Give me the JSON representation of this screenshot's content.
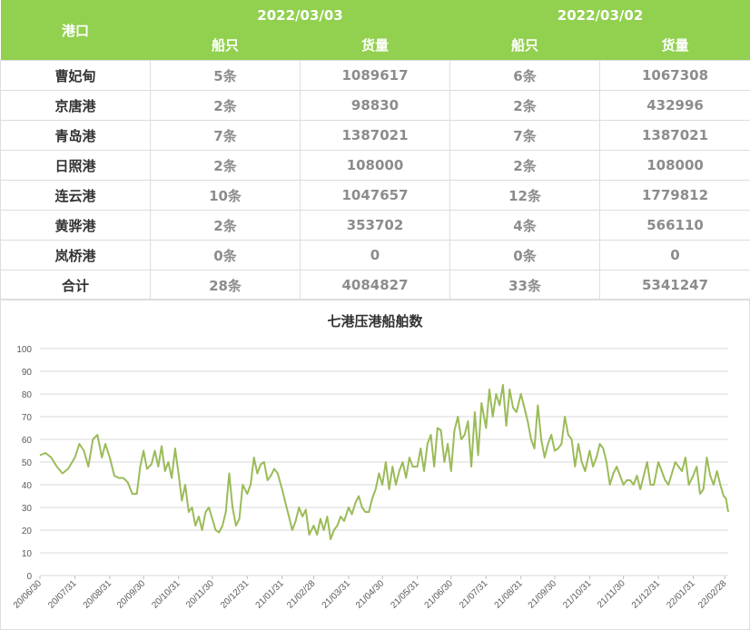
{
  "table": {
    "port_header": "港口",
    "dates": [
      "2022/03/03",
      "2022/03/02"
    ],
    "sub_headers": [
      "船只",
      "货量",
      "船只",
      "货量"
    ],
    "rows": [
      {
        "port": "曹妃甸",
        "ships1": "5条",
        "volume1": "1089617",
        "ships2": "6条",
        "volume2": "1067308"
      },
      {
        "port": "京唐港",
        "ships1": "2条",
        "volume1": "98830",
        "ships2": "2条",
        "volume2": "432996"
      },
      {
        "port": "青岛港",
        "ships1": "7条",
        "volume1": "1387021",
        "ships2": "7条",
        "volume2": "1387021"
      },
      {
        "port": "日照港",
        "ships1": "2条",
        "volume1": "108000",
        "ships2": "2条",
        "volume2": "108000"
      },
      {
        "port": "连云港",
        "ships1": "10条",
        "volume1": "1047657",
        "ships2": "12条",
        "volume2": "1779812"
      },
      {
        "port": "黄骅港",
        "ships1": "2条",
        "volume1": "353702",
        "ships2": "4条",
        "volume2": "566110"
      },
      {
        "port": "岚桥港",
        "ships1": "0条",
        "volume1": "0",
        "ships2": "0条",
        "volume2": "0"
      },
      {
        "port": "合计",
        "ships1": "28条",
        "volume1": "4084827",
        "ships2": "33条",
        "volume2": "5341247"
      }
    ]
  },
  "colors": {
    "header_bg": "#92d050",
    "line": "#9bbb59",
    "grid": "#d9d9d9"
  },
  "chart_data": {
    "type": "line",
    "title": "七港压港船舶数",
    "xlabel": "",
    "ylabel": "",
    "ylim": [
      0,
      100
    ],
    "y_ticks": [
      0,
      10,
      20,
      30,
      40,
      50,
      60,
      70,
      80,
      90,
      100
    ],
    "x_range": [
      "2020-06-30",
      "2022-03-03"
    ],
    "x_tick_labels": [
      "20/06/30",
      "20/07/31",
      "20/08/31",
      "20/09/30",
      "20/10/31",
      "20/11/30",
      "20/12/31",
      "21/01/31",
      "21/02/28",
      "21/03/31",
      "21/04/30",
      "21/05/31",
      "21/06/30",
      "21/07/31",
      "21/08/31",
      "21/09/30",
      "21/10/31",
      "21/11/30",
      "21/12/31",
      "22/01/31",
      "22/02/28"
    ],
    "x_tick_dates": [
      "2020-06-30",
      "2020-07-31",
      "2020-08-31",
      "2020-09-30",
      "2020-10-31",
      "2020-11-30",
      "2020-12-31",
      "2021-01-31",
      "2021-02-28",
      "2021-03-31",
      "2021-04-30",
      "2021-05-31",
      "2021-06-30",
      "2021-07-31",
      "2021-08-31",
      "2021-09-30",
      "2021-10-31",
      "2021-11-30",
      "2021-12-31",
      "2022-01-31",
      "2022-02-28"
    ],
    "grid": true,
    "series": [
      {
        "x": [
          "2020-06-30",
          "2020-07-05",
          "2020-07-10",
          "2020-07-15",
          "2020-07-20",
          "2020-07-25",
          "2020-07-31",
          "2020-08-04",
          "2020-08-08",
          "2020-08-12",
          "2020-08-16",
          "2020-08-20",
          "2020-08-24",
          "2020-08-27",
          "2020-08-31",
          "2020-09-04",
          "2020-09-08",
          "2020-09-12",
          "2020-09-16",
          "2020-09-20",
          "2020-09-24",
          "2020-09-27",
          "2020-09-30",
          "2020-10-03",
          "2020-10-07",
          "2020-10-10",
          "2020-10-13",
          "2020-10-16",
          "2020-10-19",
          "2020-10-22",
          "2020-10-25",
          "2020-10-28",
          "2020-10-31",
          "2020-11-03",
          "2020-11-06",
          "2020-11-09",
          "2020-11-12",
          "2020-11-15",
          "2020-11-18",
          "2020-11-21",
          "2020-11-24",
          "2020-11-27",
          "2020-11-30",
          "2020-12-03",
          "2020-12-06",
          "2020-12-09",
          "2020-12-12",
          "2020-12-15",
          "2020-12-18",
          "2020-12-21",
          "2020-12-24",
          "2020-12-27",
          "2020-12-31",
          "2021-01-03",
          "2021-01-06",
          "2021-01-09",
          "2021-01-12",
          "2021-01-15",
          "2021-01-18",
          "2021-01-21",
          "2021-01-24",
          "2021-01-27",
          "2021-01-31",
          "2021-02-03",
          "2021-02-06",
          "2021-02-09",
          "2021-02-12",
          "2021-02-15",
          "2021-02-18",
          "2021-02-21",
          "2021-02-24",
          "2021-02-28",
          "2021-03-03",
          "2021-03-06",
          "2021-03-09",
          "2021-03-12",
          "2021-03-15",
          "2021-03-18",
          "2021-03-21",
          "2021-03-24",
          "2021-03-27",
          "2021-03-31",
          "2021-04-03",
          "2021-04-06",
          "2021-04-09",
          "2021-04-12",
          "2021-04-15",
          "2021-04-18",
          "2021-04-21",
          "2021-04-24",
          "2021-04-27",
          "2021-04-30",
          "2021-05-03",
          "2021-05-06",
          "2021-05-09",
          "2021-05-12",
          "2021-05-15",
          "2021-05-18",
          "2021-05-21",
          "2021-05-24",
          "2021-05-27",
          "2021-05-31",
          "2021-06-03",
          "2021-06-06",
          "2021-06-09",
          "2021-06-12",
          "2021-06-15",
          "2021-06-18",
          "2021-06-21",
          "2021-06-24",
          "2021-06-27",
          "2021-06-30",
          "2021-07-03",
          "2021-07-06",
          "2021-07-09",
          "2021-07-12",
          "2021-07-15",
          "2021-07-18",
          "2021-07-21",
          "2021-07-24",
          "2021-07-27",
          "2021-07-31",
          "2021-08-03",
          "2021-08-06",
          "2021-08-09",
          "2021-08-12",
          "2021-08-15",
          "2021-08-18",
          "2021-08-21",
          "2021-08-24",
          "2021-08-27",
          "2021-08-31",
          "2021-09-03",
          "2021-09-06",
          "2021-09-09",
          "2021-09-12",
          "2021-09-15",
          "2021-09-18",
          "2021-09-21",
          "2021-09-24",
          "2021-09-27",
          "2021-09-30",
          "2021-10-03",
          "2021-10-06",
          "2021-10-09",
          "2021-10-12",
          "2021-10-15",
          "2021-10-18",
          "2021-10-21",
          "2021-10-24",
          "2021-10-27",
          "2021-10-31",
          "2021-11-03",
          "2021-11-06",
          "2021-11-09",
          "2021-11-12",
          "2021-11-15",
          "2021-11-18",
          "2021-11-21",
          "2021-11-24",
          "2021-11-27",
          "2021-11-30",
          "2021-12-03",
          "2021-12-06",
          "2021-12-09",
          "2021-12-12",
          "2021-12-15",
          "2021-12-18",
          "2021-12-21",
          "2021-12-24",
          "2021-12-27",
          "2021-12-31",
          "2022-01-03",
          "2022-01-06",
          "2022-01-09",
          "2022-01-12",
          "2022-01-15",
          "2022-01-18",
          "2022-01-21",
          "2022-01-24",
          "2022-01-27",
          "2022-01-31",
          "2022-02-03",
          "2022-02-06",
          "2022-02-09",
          "2022-02-12",
          "2022-02-15",
          "2022-02-18",
          "2022-02-21",
          "2022-02-24",
          "2022-02-27",
          "2022-03-01",
          "2022-03-03"
        ],
        "values": [
          53,
          54,
          52,
          48,
          45,
          47,
          52,
          58,
          55,
          48,
          60,
          62,
          52,
          58,
          52,
          44,
          43,
          43,
          41,
          36,
          36,
          48,
          55,
          47,
          49,
          55,
          48,
          57,
          46,
          50,
          43,
          56,
          45,
          33,
          40,
          28,
          30,
          22,
          26,
          20,
          28,
          30,
          25,
          20,
          19,
          22,
          28,
          45,
          30,
          22,
          25,
          40,
          36,
          40,
          52,
          45,
          49,
          50,
          42,
          44,
          47,
          45,
          38,
          32,
          26,
          20,
          24,
          30,
          26,
          29,
          18,
          22,
          18,
          25,
          20,
          26,
          16,
          20,
          22,
          26,
          24,
          30,
          27,
          32,
          35,
          30,
          28,
          28,
          34,
          38,
          45,
          40,
          50,
          38,
          48,
          40,
          46,
          50,
          43,
          52,
          48,
          48,
          56,
          46,
          58,
          62,
          48,
          65,
          64,
          50,
          58,
          46,
          64,
          70,
          60,
          62,
          68,
          48,
          72,
          53,
          76,
          65,
          82,
          70,
          80,
          75,
          84,
          66,
          82,
          74,
          72,
          80,
          74,
          68,
          60,
          56,
          75,
          60,
          52,
          58,
          62,
          55,
          56,
          58,
          70,
          62,
          60,
          48,
          58,
          50,
          46,
          55,
          48,
          52,
          58,
          56,
          50,
          40,
          45,
          48,
          44,
          40,
          42,
          42,
          40,
          44,
          38,
          44,
          50,
          40,
          40,
          50,
          46,
          42,
          40,
          45,
          50,
          48,
          46,
          52,
          40,
          44,
          48,
          36,
          38,
          52,
          44,
          40,
          46,
          40,
          35,
          34,
          28
        ]
      }
    ]
  }
}
